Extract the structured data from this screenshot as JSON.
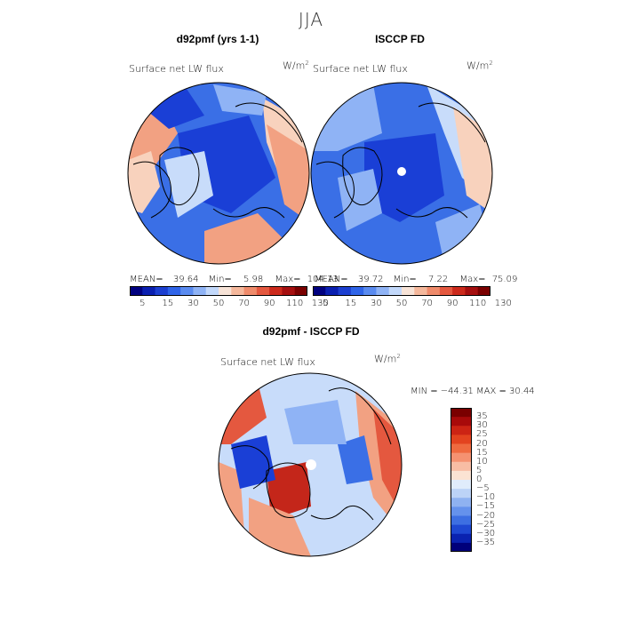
{
  "figure": {
    "title": "JJA"
  },
  "panels": [
    {
      "title": "d92pmf (yrs 1-1)",
      "variable": "Surface net LW flux",
      "units": "W/m2",
      "stats": {
        "mean_label": "MEAN=",
        "mean": "39.64",
        "min_label": "Min=",
        "min": "5.98",
        "max_label": "Max=",
        "max": "104.13"
      }
    },
    {
      "title": "ISCCP FD",
      "variable": "Surface net LW flux",
      "units": "W/m2",
      "stats": {
        "mean_label": "MEAN=",
        "mean": "39.72",
        "min_label": "Min=",
        "min": "7.22",
        "max_label": "Max=",
        "max": "75.09"
      }
    },
    {
      "title": "d92pmf - ISCCP FD",
      "variable": "Surface net LW flux",
      "units": "W/m2",
      "stats_line": "MIN = −44.31 MAX =  30.44"
    }
  ],
  "colorbar_top": {
    "tick_labels": [
      "5",
      "15",
      "30",
      "50",
      "70",
      "90",
      "110",
      "130"
    ],
    "colors": [
      "#00007f",
      "#0a1fb0",
      "#1c3fd0",
      "#2f64e8",
      "#5a8bf0",
      "#8fb3f5",
      "#c2d8fa",
      "#f7e3d7",
      "#f5b89c",
      "#ef8b6b",
      "#e4583f",
      "#cc2a1c",
      "#a50f0f",
      "#7a0000"
    ]
  },
  "colorbar_diff": {
    "tick_labels": [
      "35",
      "30",
      "25",
      "20",
      "15",
      "10",
      "5",
      "0",
      "−5",
      "−10",
      "−15",
      "−20",
      "−25",
      "−30",
      "−35"
    ],
    "colors": [
      "#7a0000",
      "#a80a0a",
      "#cc2414",
      "#e3431f",
      "#ef6a3f",
      "#f59271",
      "#f8bda4",
      "#fbe3d3",
      "#e0ecfb",
      "#bcd3f7",
      "#8fb2f1",
      "#6592ec",
      "#3d6fe2",
      "#1e48d2",
      "#0a22b0",
      "#00007a"
    ]
  },
  "map_colors": {
    "deep_blue": "#1a3fd6",
    "mid_blue": "#3a6fe6",
    "light_blue": "#8fb3f5",
    "pale_blue": "#c8dcfa",
    "pale_red": "#f8d2bd",
    "light_red": "#f2a182",
    "red": "#e4583f",
    "dark_red": "#c4261a"
  }
}
